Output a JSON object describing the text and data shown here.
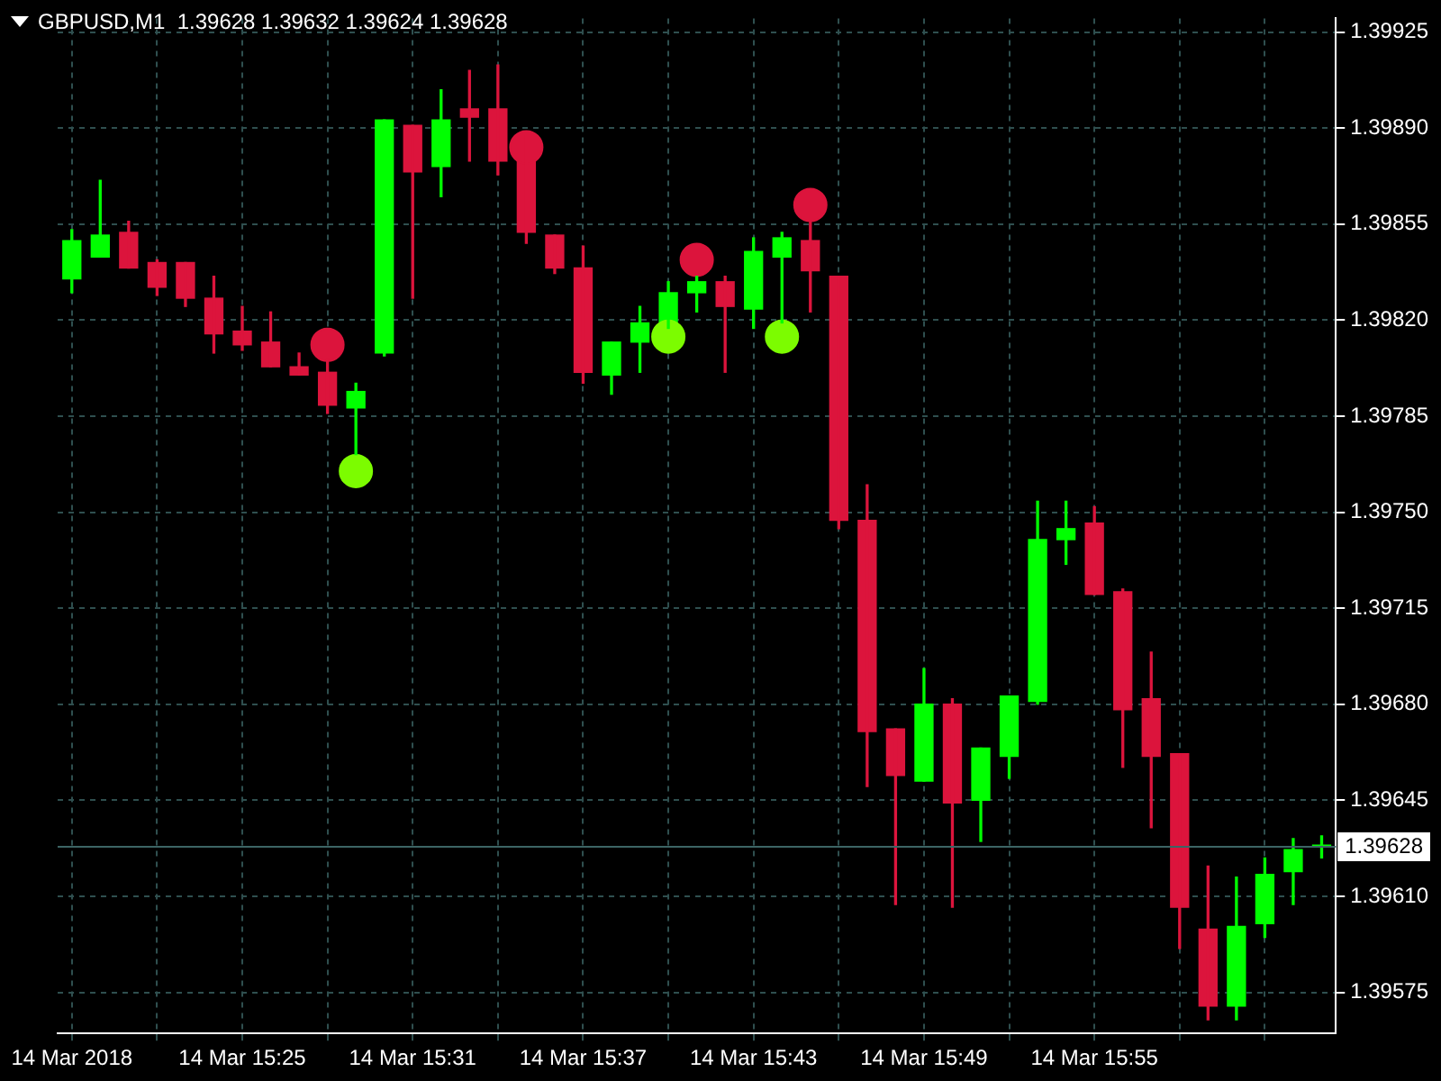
{
  "chart_data": {
    "type": "candlestick",
    "title": "GBPUSD,M1  1.39628 1.39632 1.39624 1.39628",
    "categories": [
      "14 Mar 2018",
      null,
      null,
      null,
      null,
      null,
      "14 Mar 15:25",
      null,
      null,
      null,
      null,
      null,
      "14 Mar 15:31",
      null,
      null,
      null,
      null,
      null,
      "14 Mar 15:37",
      null,
      null,
      null,
      null,
      null,
      "14 Mar 15:43",
      null,
      null,
      null,
      null,
      null,
      "14 Mar 15:49",
      null,
      null,
      null,
      null,
      null,
      "14 Mar 15:55",
      null,
      null,
      null,
      null,
      null,
      null,
      null,
      null
    ],
    "ohlc": [
      [
        1.39835,
        1.39853,
        1.3983,
        1.39849
      ],
      [
        1.39843,
        1.39871,
        1.39843,
        1.39851
      ],
      [
        1.39852,
        1.39856,
        1.39839,
        1.39839
      ],
      [
        1.39841,
        1.39842,
        1.39829,
        1.39832
      ],
      [
        1.39841,
        1.39841,
        1.39825,
        1.39828
      ],
      [
        1.39828,
        1.39836,
        1.39808,
        1.39815
      ],
      [
        1.39816,
        1.39825,
        1.39809,
        1.39811
      ],
      [
        1.39812,
        1.39823,
        1.39803,
        1.39803
      ],
      [
        1.39803,
        1.39808,
        1.398,
        1.398
      ],
      [
        1.39801,
        1.39806,
        1.39786,
        1.39789
      ],
      [
        1.39788,
        1.39797,
        1.39771,
        1.39794
      ],
      [
        1.39808,
        1.39893,
        1.39807,
        1.39893
      ],
      [
        1.39891,
        1.39891,
        1.39828,
        1.39874
      ],
      [
        1.39876,
        1.39904,
        1.39865,
        1.39893
      ],
      [
        1.39897,
        1.39911,
        1.39878,
        1.39894
      ],
      [
        1.39897,
        1.39913,
        1.39873,
        1.39878
      ],
      [
        1.39886,
        1.39887,
        1.39848,
        1.39852
      ],
      [
        1.39851,
        1.39851,
        1.39837,
        1.39839
      ],
      [
        1.39839,
        1.39847,
        1.39797,
        1.39801
      ],
      [
        1.398,
        1.39812,
        1.39793,
        1.39812
      ],
      [
        1.39812,
        1.39825,
        1.39801,
        1.39819
      ],
      [
        1.39819,
        1.39834,
        1.39817,
        1.3983
      ],
      [
        1.3983,
        1.39836,
        1.39823,
        1.39834
      ],
      [
        1.39834,
        1.39836,
        1.39801,
        1.39825
      ],
      [
        1.39824,
        1.3985,
        1.39817,
        1.39845
      ],
      [
        1.39843,
        1.39852,
        1.39819,
        1.3985
      ],
      [
        1.39849,
        1.39856,
        1.39823,
        1.39838
      ],
      [
        1.39836,
        1.39836,
        1.39744,
        1.39747
      ],
      [
        1.39747,
        1.3976,
        1.3965,
        1.3967
      ],
      [
        1.39671,
        1.39671,
        1.39607,
        1.39654
      ],
      [
        1.39652,
        1.39693,
        1.39652,
        1.3968
      ],
      [
        1.3968,
        1.39682,
        1.39606,
        1.39644
      ],
      [
        1.39645,
        1.39664,
        1.3963,
        1.39664
      ],
      [
        1.39661,
        1.39683,
        1.39653,
        1.39683
      ],
      [
        1.39681,
        1.39754,
        1.3968,
        1.3974
      ],
      [
        1.3974,
        1.39754,
        1.39731,
        1.39744
      ],
      [
        1.39746,
        1.39752,
        1.3972,
        1.3972
      ],
      [
        1.39721,
        1.39722,
        1.39657,
        1.39678
      ],
      [
        1.39682,
        1.39699,
        1.39635,
        1.39661
      ],
      [
        1.39662,
        1.39662,
        1.39591,
        1.39606
      ],
      [
        1.39598,
        1.39621,
        1.39565,
        1.3957
      ],
      [
        1.3957,
        1.39617,
        1.39565,
        1.39599
      ],
      [
        1.396,
        1.39624,
        1.39595,
        1.39618
      ],
      [
        1.39619,
        1.39631,
        1.39607,
        1.39627
      ],
      [
        1.39628,
        1.39632,
        1.39624,
        1.39628
      ]
    ],
    "colors": [
      "#00ff00",
      "#00ff00",
      "#dc143c",
      "#dc143c",
      "#dc143c",
      "#dc143c",
      "#dc143c",
      "#dc143c",
      "#dc143c",
      "#dc143c",
      "#00ff00",
      "#00ff00",
      "#dc143c",
      "#00ff00",
      "#dc143c",
      "#dc143c",
      "#dc143c",
      "#dc143c",
      "#dc143c",
      "#00ff00",
      "#00ff00",
      "#00ff00",
      "#00ff00",
      "#dc143c",
      "#00ff00",
      "#00ff00",
      "#dc143c",
      "#dc143c",
      "#dc143c",
      "#dc143c",
      "#00ff00",
      "#dc143c",
      "#00ff00",
      "#00ff00",
      "#00ff00",
      "#00ff00",
      "#dc143c",
      "#dc143c",
      "#dc143c",
      "#dc143c",
      "#dc143c",
      "#00ff00",
      "#00ff00",
      "#00ff00",
      "#00ff00"
    ],
    "series": [
      {
        "type": "scatter",
        "color": "#dc143c",
        "marker": "circle",
        "values": [
          null,
          null,
          null,
          null,
          null,
          null,
          null,
          null,
          null,
          1.39811,
          null,
          null,
          null,
          null,
          null,
          null,
          1.39883,
          null,
          null,
          null,
          null,
          null,
          1.39842,
          null,
          null,
          null,
          1.39862,
          null,
          null,
          null,
          null,
          null,
          null,
          null,
          null,
          null,
          null,
          null,
          null,
          null,
          null,
          null,
          null,
          null,
          null
        ]
      },
      {
        "type": "scatter",
        "color": "#7cfc00",
        "marker": "circle",
        "values": [
          null,
          null,
          null,
          null,
          null,
          null,
          null,
          null,
          null,
          null,
          1.39765,
          null,
          null,
          null,
          null,
          null,
          null,
          null,
          null,
          null,
          null,
          1.39814,
          null,
          null,
          null,
          1.39814,
          null,
          null,
          null,
          null,
          null,
          null,
          null,
          null,
          null,
          null,
          null,
          null,
          null,
          null,
          null,
          null,
          null,
          null,
          null
        ]
      }
    ],
    "ylim": [
      1.3956,
      1.3993
    ],
    "yticks": [
      1.39575,
      {
        "value": 1.3961,
        "label": "1.39610"
      },
      1.39645,
      {
        "value": 1.3968,
        "label": "1.39680"
      },
      1.39715,
      {
        "value": 1.3975,
        "label": "1.39750"
      },
      1.39785,
      {
        "value": 1.3982,
        "label": "1.39820"
      },
      1.39855,
      {
        "value": 1.3989,
        "label": "1.39890"
      },
      1.39925
    ],
    "ref_lines": [
      {
        "axis": "y",
        "value": 1.39628,
        "label": "1.39628",
        "color": "#3c6464"
      }
    ],
    "grid": true,
    "legend": false
  }
}
